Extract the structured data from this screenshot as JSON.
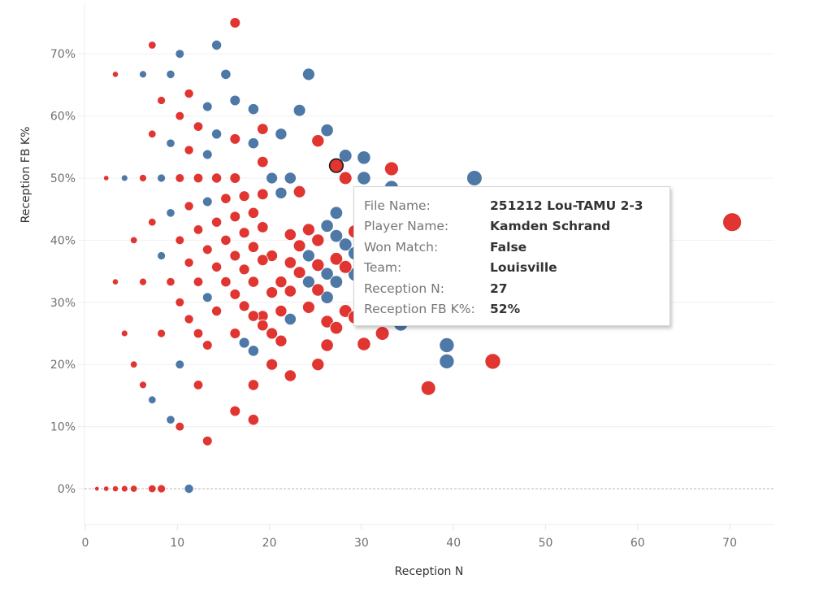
{
  "chart_data": {
    "type": "scatter",
    "title": "",
    "xlabel": "Reception N",
    "ylabel": "Reception FB K%",
    "xlim": [
      0,
      75
    ],
    "ylim": [
      -6,
      78
    ],
    "x_ticks": [
      0,
      10,
      20,
      30,
      40,
      50,
      60,
      70
    ],
    "x_tick_labels": [
      "0",
      "10",
      "20",
      "30",
      "40",
      "50",
      "60",
      "70"
    ],
    "y_ticks": [
      0,
      10,
      20,
      30,
      40,
      50,
      60,
      70
    ],
    "y_tick_labels": [
      "0%",
      "10%",
      "20%",
      "30%",
      "40%",
      "50%",
      "60%",
      "70%"
    ],
    "grid": true,
    "size_encodes": "Reception N",
    "color_encodes": "Won Match",
    "colors": {
      "won": "#4e79a7",
      "lost": "#e03531"
    },
    "series": [
      {
        "name": "True",
        "color": "#4e79a7",
        "points": [
          [
            14,
            71.4
          ],
          [
            10,
            70
          ],
          [
            6,
            66.7
          ],
          [
            9,
            66.7
          ],
          [
            15,
            66.7
          ],
          [
            24,
            66.7
          ],
          [
            16,
            62.5
          ],
          [
            13,
            61.5
          ],
          [
            18,
            61.1
          ],
          [
            23,
            60.9
          ],
          [
            14,
            57.1
          ],
          [
            21,
            57.1
          ],
          [
            26,
            57.7
          ],
          [
            9,
            55.6
          ],
          [
            18,
            55.6
          ],
          [
            13,
            53.8
          ],
          [
            28,
            53.6
          ],
          [
            30,
            53.3
          ],
          [
            4,
            50
          ],
          [
            8,
            50
          ],
          [
            20,
            50
          ],
          [
            22,
            50
          ],
          [
            30,
            50
          ],
          [
            42,
            50
          ],
          [
            33,
            48.5
          ],
          [
            13,
            46.2
          ],
          [
            21,
            47.6
          ],
          [
            9,
            44.4
          ],
          [
            27,
            44.4
          ],
          [
            26,
            42.3
          ],
          [
            27,
            40.7
          ],
          [
            28,
            39.3
          ],
          [
            29,
            37.9
          ],
          [
            8,
            37.5
          ],
          [
            24,
            37.5
          ],
          [
            30,
            36.7
          ],
          [
            26,
            34.6
          ],
          [
            27,
            33.3
          ],
          [
            24,
            33.3
          ],
          [
            29,
            34.5
          ],
          [
            13,
            30.8
          ],
          [
            26,
            30.8
          ],
          [
            17,
            29.4
          ],
          [
            34,
            29.4
          ],
          [
            21,
            28.6
          ],
          [
            33,
            27.3
          ],
          [
            34,
            26.5
          ],
          [
            17,
            23.5
          ],
          [
            39,
            23.1
          ],
          [
            18,
            22.2
          ],
          [
            22,
            27.3
          ],
          [
            10,
            20
          ],
          [
            39,
            20.5
          ],
          [
            7,
            14.3
          ],
          [
            9,
            11.1
          ],
          [
            11,
            0
          ]
        ]
      },
      {
        "name": "False",
        "color": "#e03531",
        "points": [
          [
            16,
            75
          ],
          [
            7,
            71.4
          ],
          [
            3,
            66.7
          ],
          [
            11,
            63.6
          ],
          [
            8,
            62.5
          ],
          [
            10,
            60
          ],
          [
            12,
            58.3
          ],
          [
            19,
            57.9
          ],
          [
            7,
            57.1
          ],
          [
            16,
            56.3
          ],
          [
            25,
            56
          ],
          [
            11,
            54.5
          ],
          [
            19,
            52.6
          ],
          [
            33,
            51.5
          ],
          [
            27,
            52
          ],
          [
            2,
            50
          ],
          [
            6,
            50
          ],
          [
            10,
            50
          ],
          [
            12,
            50
          ],
          [
            14,
            50
          ],
          [
            16,
            50
          ],
          [
            28,
            50
          ],
          [
            23,
            47.8
          ],
          [
            15,
            46.7
          ],
          [
            17,
            47.1
          ],
          [
            19,
            47.4
          ],
          [
            16,
            43.8
          ],
          [
            18,
            44.4
          ],
          [
            11,
            45.5
          ],
          [
            14,
            42.9
          ],
          [
            7,
            42.9
          ],
          [
            12,
            41.7
          ],
          [
            17,
            41.2
          ],
          [
            19,
            42.1
          ],
          [
            22,
            40.9
          ],
          [
            24,
            41.7
          ],
          [
            29,
            41.4
          ],
          [
            5,
            40
          ],
          [
            10,
            40
          ],
          [
            15,
            40
          ],
          [
            23,
            39.1
          ],
          [
            25,
            40
          ],
          [
            18,
            38.9
          ],
          [
            13,
            38.5
          ],
          [
            16,
            37.5
          ],
          [
            20,
            37.5
          ],
          [
            27,
            37
          ],
          [
            11,
            36.4
          ],
          [
            14,
            35.7
          ],
          [
            19,
            36.8
          ],
          [
            17,
            35.3
          ],
          [
            22,
            36.4
          ],
          [
            25,
            36
          ],
          [
            28,
            35.7
          ],
          [
            21,
            33.3
          ],
          [
            23,
            34.8
          ],
          [
            3,
            33.3
          ],
          [
            6,
            33.3
          ],
          [
            9,
            33.3
          ],
          [
            12,
            33.3
          ],
          [
            15,
            33.3
          ],
          [
            18,
            33.3
          ],
          [
            25,
            32
          ],
          [
            20,
            31.6
          ],
          [
            16,
            31.3
          ],
          [
            22,
            31.8
          ],
          [
            10,
            30
          ],
          [
            17,
            29.4
          ],
          [
            19,
            27.8
          ],
          [
            21,
            28.6
          ],
          [
            24,
            29.2
          ],
          [
            28,
            28.6
          ],
          [
            29,
            27.6
          ],
          [
            31,
            29
          ],
          [
            11,
            27.3
          ],
          [
            14,
            28.6
          ],
          [
            18,
            27.8
          ],
          [
            13,
            23.1
          ],
          [
            20,
            25
          ],
          [
            19,
            26.3
          ],
          [
            21,
            23.8
          ],
          [
            4,
            25
          ],
          [
            8,
            25
          ],
          [
            12,
            25
          ],
          [
            16,
            25
          ],
          [
            26,
            26.9
          ],
          [
            27,
            25.9
          ],
          [
            32,
            25
          ],
          [
            26,
            23.1
          ],
          [
            30,
            23.3
          ],
          [
            5,
            20
          ],
          [
            20,
            20
          ],
          [
            25,
            20
          ],
          [
            44,
            20.5
          ],
          [
            22,
            18.2
          ],
          [
            6,
            16.7
          ],
          [
            12,
            16.7
          ],
          [
            18,
            16.7
          ],
          [
            37,
            16.2
          ],
          [
            16,
            12.5
          ],
          [
            18,
            11.1
          ],
          [
            10,
            10
          ],
          [
            13,
            7.7
          ],
          [
            70,
            42.9
          ],
          [
            1,
            0
          ],
          [
            2,
            0
          ],
          [
            3,
            0
          ],
          [
            4,
            0
          ],
          [
            5,
            0
          ],
          [
            7,
            0
          ],
          [
            8,
            0
          ]
        ]
      }
    ],
    "highlighted_point": [
      27,
      52
    ]
  },
  "tooltip": {
    "rows": [
      {
        "label": "File Name:",
        "value": "251212 Lou-TAMU 2-3"
      },
      {
        "label": "Player Name:",
        "value": "Kamden Schrand"
      },
      {
        "label": "Won Match:",
        "value": "False"
      },
      {
        "label": "Team:",
        "value": "Louisville"
      },
      {
        "label": "Reception N:",
        "value": "27"
      },
      {
        "label": "Reception FB K%:",
        "value": "52%"
      }
    ]
  }
}
